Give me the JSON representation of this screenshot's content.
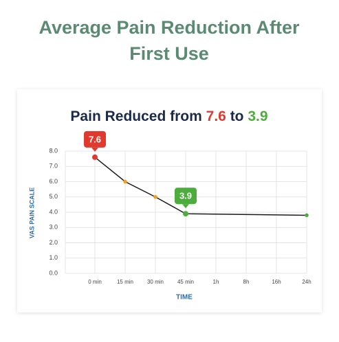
{
  "heading": "Average Pain Reduction After First Use",
  "chart_data": {
    "type": "line",
    "title": {
      "prefix": "Pain Reduced from",
      "start": "7.6",
      "middle": "to",
      "end": "3.9"
    },
    "y_label": "VAS PAIN SCALE",
    "x_label": "TIME",
    "categories": [
      "0 min",
      "15 min",
      "30 min",
      "45 min",
      "1h",
      "8h",
      "16h",
      "24h"
    ],
    "ylim": [
      0,
      8
    ],
    "yticks": [
      {
        "value": 0,
        "label": "0.0"
      },
      {
        "value": 1,
        "label": "1.0"
      },
      {
        "value": 2,
        "label": "2.0"
      },
      {
        "value": 3,
        "label": "3.0"
      },
      {
        "value": 4,
        "label": "4.0"
      },
      {
        "value": 5,
        "label": "5.0"
      },
      {
        "value": 6,
        "label": "6.0"
      },
      {
        "value": 7,
        "label": "7.0"
      },
      {
        "value": 8,
        "label": "8.0"
      }
    ],
    "grid": true,
    "series": [
      {
        "color": "#1a1a1a",
        "x": [
          "0 min",
          "15 min",
          "30 min",
          "45 min",
          "24h"
        ],
        "values": [
          7.6,
          6.0,
          5.0,
          3.9,
          3.8
        ],
        "point_colors": [
          "#e03a2f",
          "#f0a020",
          "#f0a020",
          "#4cad3c",
          "#4cad3c"
        ],
        "value_labels": [
          "7.6",
          null,
          null,
          "3.9",
          null
        ]
      }
    ]
  }
}
